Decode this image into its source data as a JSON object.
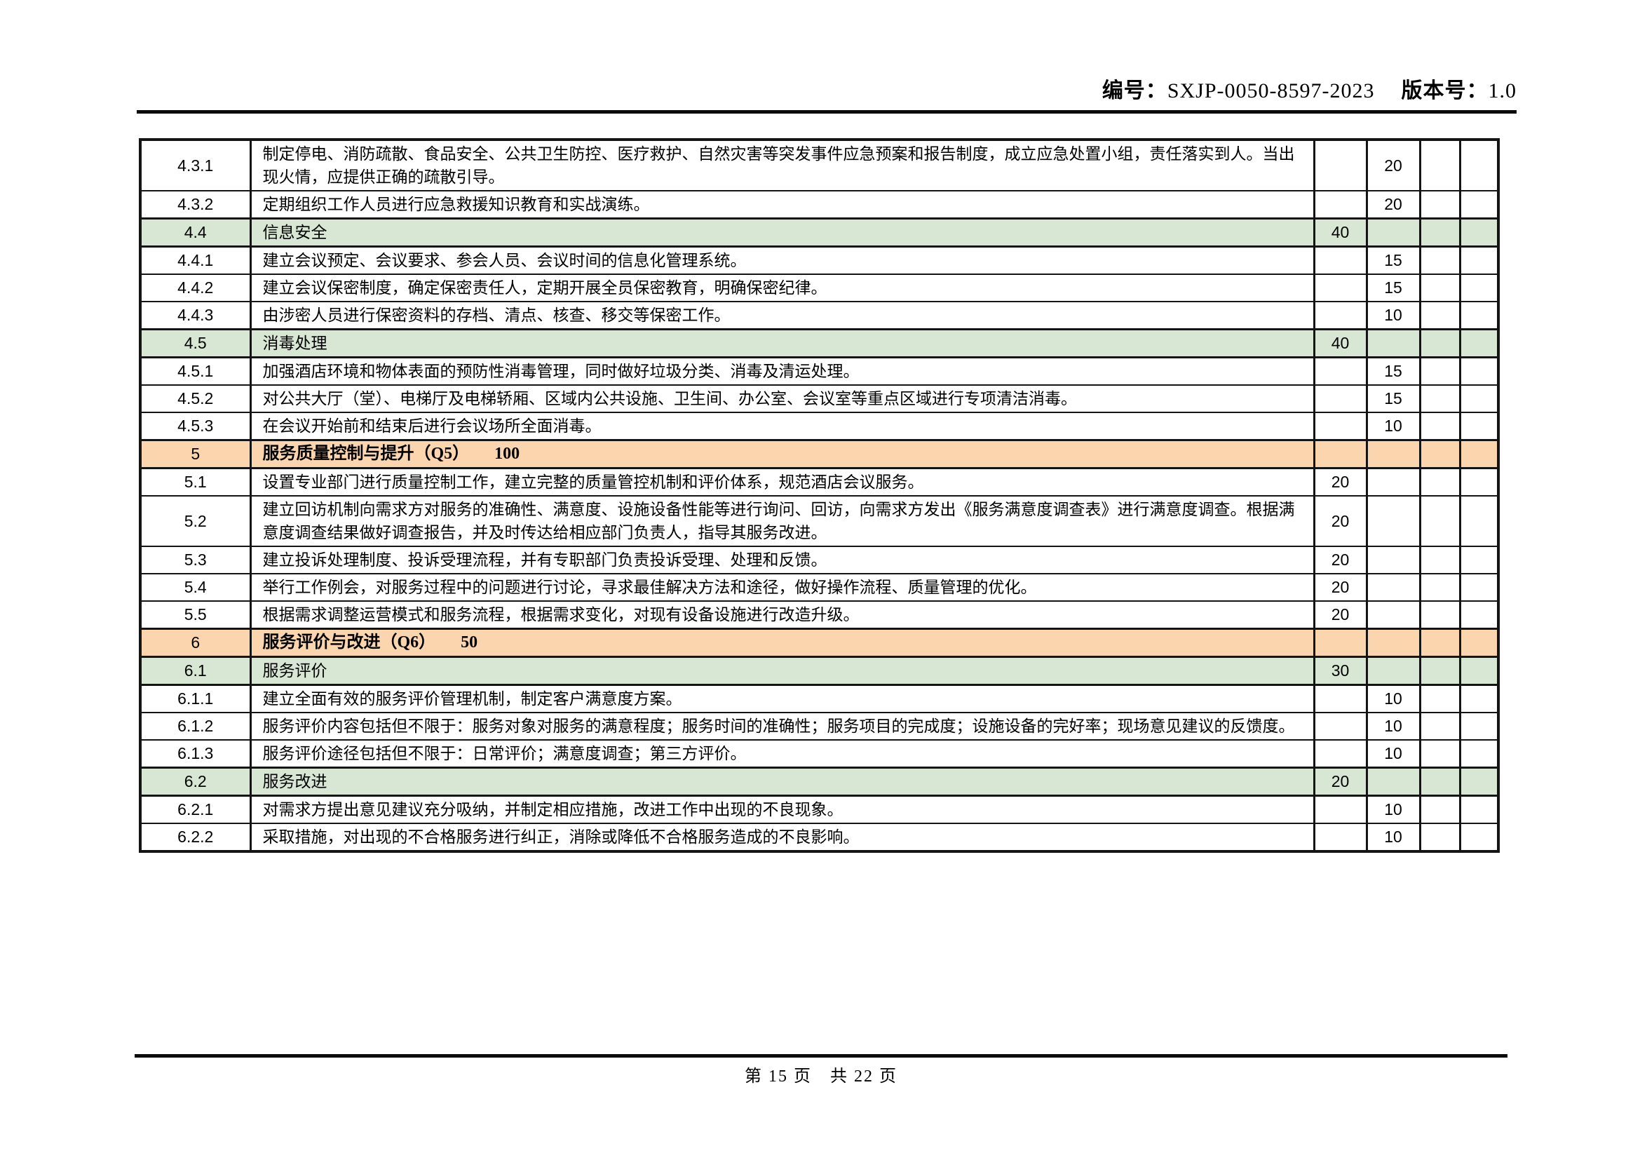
{
  "header": {
    "code_label": "编号：",
    "code_value": "SXJP-0050-8597-2023",
    "version_label": "版本号：",
    "version_value": "1.0"
  },
  "footer": {
    "page_text": "第 15 页　共 22 页"
  },
  "colors": {
    "section_orange": "#fbd5ad",
    "subsection_green": "#d8e7d3",
    "border": "#141414"
  },
  "table": {
    "rows": [
      {
        "no": "4.3.1",
        "content": "制定停电、消防疏散、食品安全、公共卫生防控、医疗救护、自然灾害等突发事件应急预案和报告制度，成立应急处置小组，责任落实到人。当出现火情，应提供正确的疏散引导。",
        "score_main": "",
        "score_sub": "20",
        "style": "item"
      },
      {
        "no": "4.3.2",
        "content": "定期组织工作人员进行应急救援知识教育和实战演练。",
        "score_main": "",
        "score_sub": "20",
        "style": "item"
      },
      {
        "no": "4.4",
        "content": "信息安全",
        "score_main": "40",
        "score_sub": "",
        "style": "subsection"
      },
      {
        "no": "4.4.1",
        "content": "建立会议预定、会议要求、参会人员、会议时间的信息化管理系统。",
        "score_main": "",
        "score_sub": "15",
        "style": "item"
      },
      {
        "no": "4.4.2",
        "content": "建立会议保密制度，确定保密责任人，定期开展全员保密教育，明确保密纪律。",
        "score_main": "",
        "score_sub": "15",
        "style": "item"
      },
      {
        "no": "4.4.3",
        "content": "由涉密人员进行保密资料的存档、清点、核查、移交等保密工作。",
        "score_main": "",
        "score_sub": "10",
        "style": "item"
      },
      {
        "no": "4.5",
        "content": "消毒处理",
        "score_main": "40",
        "score_sub": "",
        "style": "subsection"
      },
      {
        "no": "4.5.1",
        "content": "加强酒店环境和物体表面的预防性消毒管理，同时做好垃圾分类、消毒及清运处理。",
        "score_main": "",
        "score_sub": "15",
        "style": "item"
      },
      {
        "no": "4.5.2",
        "content": "对公共大厅（堂）、电梯厅及电梯轿厢、区域内公共设施、卫生间、办公室、会议室等重点区域进行专项清洁消毒。",
        "score_main": "",
        "score_sub": "15",
        "style": "item"
      },
      {
        "no": "4.5.3",
        "content": "在会议开始前和结束后进行会议场所全面消毒。",
        "score_main": "",
        "score_sub": "10",
        "style": "item"
      },
      {
        "no": "5",
        "content": "服务质量控制与提升（Q5）　　100",
        "score_main": "",
        "score_sub": "",
        "style": "section"
      },
      {
        "no": "5.1",
        "content": "设置专业部门进行质量控制工作，建立完整的质量管控机制和评价体系，规范酒店会议服务。",
        "score_main": "20",
        "score_sub": "",
        "style": "item"
      },
      {
        "no": "5.2",
        "content": "建立回访机制向需求方对服务的准确性、满意度、设施设备性能等进行询问、回访，向需求方发出《服务满意度调查表》进行满意度调查。根据满意度调查结果做好调查报告，并及时传达给相应部门负责人，指导其服务改进。",
        "score_main": "20",
        "score_sub": "",
        "style": "item"
      },
      {
        "no": "5.3",
        "content": "建立投诉处理制度、投诉受理流程，并有专职部门负责投诉受理、处理和反馈。",
        "score_main": "20",
        "score_sub": "",
        "style": "item"
      },
      {
        "no": "5.4",
        "content": "举行工作例会，对服务过程中的问题进行讨论，寻求最佳解决方法和途径，做好操作流程、质量管理的优化。",
        "score_main": "20",
        "score_sub": "",
        "style": "item"
      },
      {
        "no": "5.5",
        "content": "根据需求调整运营模式和服务流程，根据需求变化，对现有设备设施进行改造升级。",
        "score_main": "20",
        "score_sub": "",
        "style": "item"
      },
      {
        "no": "6",
        "content": "服务评价与改进（Q6）　　50",
        "score_main": "",
        "score_sub": "",
        "style": "section"
      },
      {
        "no": "6.1",
        "content": "服务评价",
        "score_main": "30",
        "score_sub": "",
        "style": "subsection"
      },
      {
        "no": "6.1.1",
        "content": "建立全面有效的服务评价管理机制，制定客户满意度方案。",
        "score_main": "",
        "score_sub": "10",
        "style": "item"
      },
      {
        "no": "6.1.2",
        "content": "服务评价内容包括但不限于：服务对象对服务的满意程度；服务时间的准确性；服务项目的完成度；设施设备的完好率；现场意见建议的反馈度。",
        "score_main": "",
        "score_sub": "10",
        "style": "item"
      },
      {
        "no": "6.1.3",
        "content": "服务评价途径包括但不限于：日常评价；满意度调查；第三方评价。",
        "score_main": "",
        "score_sub": "10",
        "style": "item"
      },
      {
        "no": "6.2",
        "content": "服务改进",
        "score_main": "20",
        "score_sub": "",
        "style": "subsection"
      },
      {
        "no": "6.2.1",
        "content": "对需求方提出意见建议充分吸纳，并制定相应措施，改进工作中出现的不良现象。",
        "score_main": "",
        "score_sub": "10",
        "style": "item"
      },
      {
        "no": "6.2.2",
        "content": "采取措施，对出现的不合格服务进行纠正，消除或降低不合格服务造成的不良影响。",
        "score_main": "",
        "score_sub": "10",
        "style": "item"
      }
    ]
  }
}
